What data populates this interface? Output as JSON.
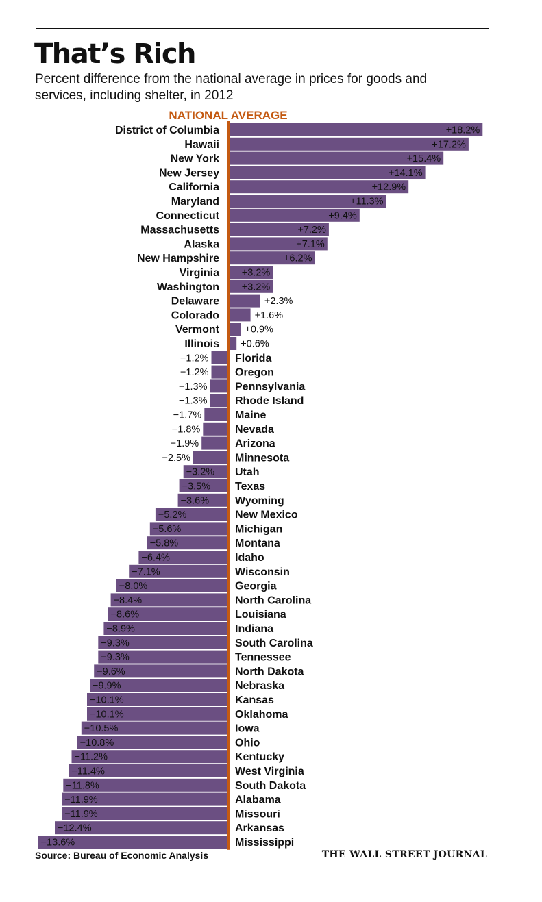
{
  "header": {
    "title": "That’s Rich",
    "subtitle": "Percent difference from the national average in prices for goods and services, including shelter, in 2012"
  },
  "footer": {
    "source": "Source: Bureau of Economic Analysis",
    "brand": "THE WALL STREET JOURNAL"
  },
  "colors": {
    "bar": "#6b4f82",
    "reference_line": "#c45a12"
  },
  "chart_data": {
    "type": "bar",
    "orientation": "horizontal",
    "reference_line_label": "NATIONAL AVERAGE",
    "reference_value": 0,
    "categories": [
      "District of Columbia",
      "Hawaii",
      "New York",
      "New Jersey",
      "California",
      "Maryland",
      "Connecticut",
      "Massachusetts",
      "Alaska",
      "New Hampshire",
      "Virginia",
      "Washington",
      "Delaware",
      "Colorado",
      "Vermont",
      "Illinois",
      "Florida",
      "Oregon",
      "Pennsylvania",
      "Rhode Island",
      "Maine",
      "Nevada",
      "Arizona",
      "Minnesota",
      "Utah",
      "Texas",
      "Wyoming",
      "New Mexico",
      "Michigan",
      "Montana",
      "Idaho",
      "Wisconsin",
      "Georgia",
      "North Carolina",
      "Louisiana",
      "Indiana",
      "South Carolina",
      "Tennessee",
      "North Dakota",
      "Nebraska",
      "Kansas",
      "Oklahoma",
      "Iowa",
      "Ohio",
      "Kentucky",
      "West Virginia",
      "South Dakota",
      "Alabama",
      "Missouri",
      "Arkansas",
      "Mississippi"
    ],
    "values": [
      18.2,
      17.2,
      15.4,
      14.1,
      12.9,
      11.3,
      9.4,
      7.2,
      7.1,
      6.2,
      3.2,
      3.2,
      2.3,
      1.6,
      0.9,
      0.6,
      -1.2,
      -1.2,
      -1.3,
      -1.3,
      -1.7,
      -1.8,
      -1.9,
      -2.5,
      -3.2,
      -3.5,
      -3.6,
      -5.2,
      -5.6,
      -5.8,
      -6.4,
      -7.1,
      -8.0,
      -8.4,
      -8.6,
      -8.9,
      -9.3,
      -9.3,
      -9.6,
      -9.9,
      -10.1,
      -10.1,
      -10.5,
      -10.8,
      -11.2,
      -11.4,
      -11.8,
      -11.9,
      -11.9,
      -12.4,
      -13.6
    ],
    "value_labels": [
      "+18.2%",
      "+17.2%",
      "+15.4%",
      "+14.1%",
      "+12.9%",
      "+11.3%",
      "+9.4%",
      "+7.2%",
      "+7.1%",
      "+6.2%",
      "+3.2%",
      "+3.2%",
      "+2.3%",
      "+1.6%",
      "+0.9%",
      "+0.6%",
      "−1.2%",
      "−1.2%",
      "−1.3%",
      "−1.3%",
      "−1.7%",
      "−1.8%",
      "−1.9%",
      "−2.5%",
      "−3.2%",
      "−3.5%",
      "−3.6%",
      "−5.2%",
      "−5.6%",
      "−5.8%",
      "−6.4%",
      "−7.1%",
      "−8.0%",
      "−8.4%",
      "−8.6%",
      "−8.9%",
      "−9.3%",
      "−9.3%",
      "−9.6%",
      "−9.9%",
      "−10.1%",
      "−10.1%",
      "−10.5%",
      "−10.8%",
      "−11.2%",
      "−11.4%",
      "−11.8%",
      "−11.9%",
      "−11.9%",
      "−12.4%",
      "−13.6%"
    ],
    "unit": "percent",
    "grid": false,
    "legend": "none"
  }
}
